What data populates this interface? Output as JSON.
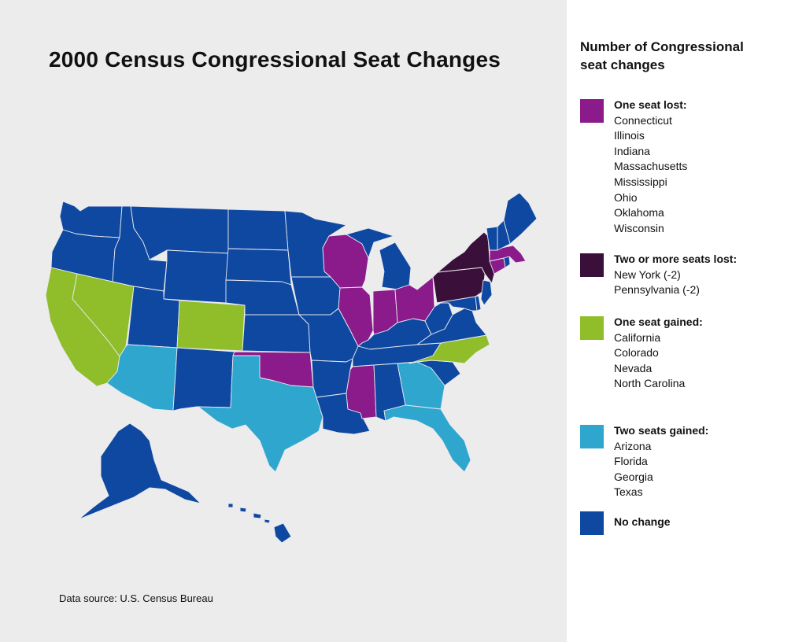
{
  "title": "2000 Census Congressional Seat Changes",
  "source": "Data source: U.S. Census Bureau",
  "legend": {
    "title_line1": "Number of Congressional",
    "title_line2": "seat changes",
    "groups": [
      {
        "label": "One seat lost:",
        "color": "#8b1a8b",
        "states": [
          "Connecticut",
          "Illinois",
          "Indiana",
          "Massachusetts",
          "Mississippi",
          "Ohio",
          "Oklahoma",
          "Wisconsin"
        ]
      },
      {
        "label": "Two or more seats lost:",
        "color": "#3a0f3a",
        "states": [
          "New York (-2)",
          "Pennsylvania (-2)"
        ]
      },
      {
        "label": "One seat gained:",
        "color": "#90bd2a",
        "states": [
          "California",
          "Colorado",
          "Nevada",
          "North Carolina"
        ]
      },
      {
        "label": "Two seats gained:",
        "color": "#2ea6cd",
        "states": [
          "Arizona",
          "Florida",
          "Georgia",
          "Texas"
        ]
      },
      {
        "label": "No change",
        "color": "#0e48a0",
        "states": []
      }
    ]
  },
  "state_categories": {
    "lost_one": [
      "CT",
      "IL",
      "IN",
      "MA",
      "MS",
      "OH",
      "OK",
      "WI"
    ],
    "lost_two": [
      "NY",
      "PA"
    ],
    "gained_one": [
      "CA",
      "CO",
      "NV",
      "NC"
    ],
    "gained_two": [
      "AZ",
      "FL",
      "GA",
      "TX"
    ],
    "no_change": [
      "WA",
      "OR",
      "ID",
      "MT",
      "WY",
      "UT",
      "NM",
      "ND",
      "SD",
      "NE",
      "KS",
      "MN",
      "IA",
      "MO",
      "AR",
      "LA",
      "MI",
      "KY",
      "TN",
      "AL",
      "SC",
      "WV",
      "VA",
      "MD",
      "DE",
      "NJ",
      "VT",
      "NH",
      "ME",
      "RI",
      "AK",
      "HI"
    ]
  }
}
